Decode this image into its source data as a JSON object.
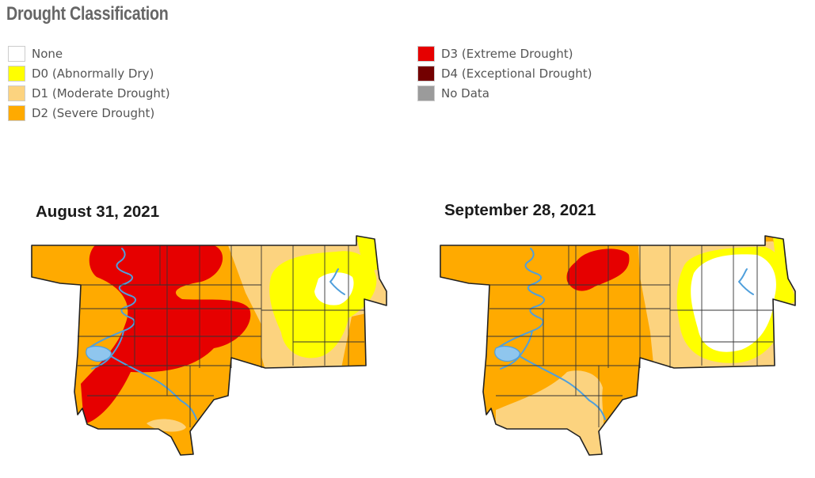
{
  "legend": {
    "title": "Drought Classification",
    "items": [
      {
        "key": "none",
        "label": "None",
        "color": "#ffffff"
      },
      {
        "key": "d0",
        "label": "D0 (Abnormally Dry)",
        "color": "#ffff00"
      },
      {
        "key": "d1",
        "label": "D1 (Moderate Drought)",
        "color": "#fcd37f"
      },
      {
        "key": "d2",
        "label": "D2 (Severe Drought)",
        "color": "#ffaa00"
      },
      {
        "key": "d3",
        "label": "D3 (Extreme Drought)",
        "color": "#e60000"
      },
      {
        "key": "d4",
        "label": "D4 (Exceptional Drought)",
        "color": "#730000"
      },
      {
        "key": "nodata",
        "label": "No Data",
        "color": "#9b9b9b"
      }
    ]
  },
  "maps": [
    {
      "date": "August 31, 2021",
      "highest_category": "D3 (Extreme Drought)"
    },
    {
      "date": "September 28, 2021",
      "highest_category": "D3 (Extreme Drought)"
    }
  ],
  "colors": {
    "water": "#4f9fdc",
    "county_lines": "#333333"
  }
}
